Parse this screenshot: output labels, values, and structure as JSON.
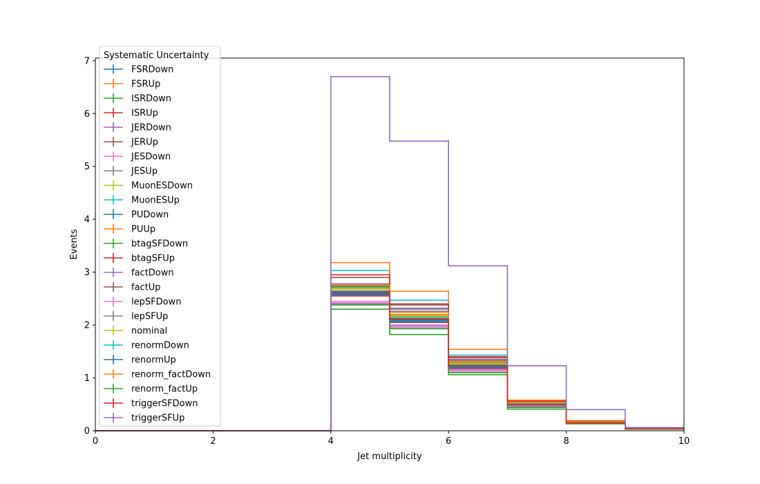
{
  "chart_data": {
    "type": "line",
    "step": "histogram",
    "xlabel": "Jet multiplicity",
    "ylabel": "Events",
    "xlim": [
      0,
      10
    ],
    "ylim": [
      0,
      7.05
    ],
    "xticks": [
      "0",
      "2",
      "4",
      "6",
      "8",
      "10"
    ],
    "yticks": [
      "0",
      "1",
      "2",
      "3",
      "4",
      "5",
      "6",
      "7"
    ],
    "grid": false,
    "bin_edges": [
      0,
      1,
      2,
      3,
      4,
      5,
      6,
      7,
      8,
      9,
      10
    ],
    "legend": {
      "title": "Systematic Uncertainty",
      "placement": "upper-left"
    },
    "series": [
      {
        "name": "FSRDown",
        "color": "#1f77b4",
        "values": [
          0,
          0,
          0,
          0,
          2.6,
          2.1,
          1.2,
          0.5,
          0.15,
          0.04
        ]
      },
      {
        "name": "FSRUp",
        "color": "#ff7f0e",
        "values": [
          0,
          0,
          0,
          0,
          2.7,
          2.2,
          1.3,
          0.55,
          0.18,
          0.05
        ]
      },
      {
        "name": "ISRDown",
        "color": "#2ca02c",
        "values": [
          0,
          0,
          0,
          0,
          2.72,
          2.15,
          1.25,
          0.52,
          0.16,
          0.04
        ]
      },
      {
        "name": "ISRUp",
        "color": "#d62728",
        "values": [
          0,
          0,
          0,
          0,
          2.55,
          2.05,
          1.18,
          0.48,
          0.15,
          0.04
        ]
      },
      {
        "name": "JERDown",
        "color": "#9467bd",
        "values": [
          0,
          0,
          0,
          0,
          2.78,
          2.3,
          1.35,
          0.55,
          0.17,
          0.05
        ]
      },
      {
        "name": "JERUp",
        "color": "#8c564b",
        "values": [
          0,
          0,
          0,
          0,
          2.9,
          2.38,
          1.38,
          0.56,
          0.18,
          0.05
        ]
      },
      {
        "name": "JESDown",
        "color": "#e377c2",
        "values": [
          0,
          0,
          0,
          0,
          2.42,
          1.95,
          1.12,
          0.45,
          0.14,
          0.04
        ]
      },
      {
        "name": "JESUp",
        "color": "#7f7f7f",
        "values": [
          0,
          0,
          0,
          0,
          2.75,
          2.32,
          1.33,
          0.55,
          0.17,
          0.05
        ]
      },
      {
        "name": "MuonESDown",
        "color": "#bcbd22",
        "values": [
          0,
          0,
          0,
          0,
          2.68,
          2.18,
          1.28,
          0.52,
          0.16,
          0.04
        ]
      },
      {
        "name": "MuonESUp",
        "color": "#17becf",
        "values": [
          0,
          0,
          0,
          0,
          3.03,
          2.47,
          1.43,
          0.55,
          0.18,
          0.05
        ]
      },
      {
        "name": "PUDown",
        "color": "#1f77b4",
        "values": [
          0,
          0,
          0,
          0,
          2.58,
          2.08,
          1.2,
          0.49,
          0.15,
          0.04
        ]
      },
      {
        "name": "PUUp",
        "color": "#ff7f0e",
        "values": [
          0,
          0,
          0,
          0,
          3.18,
          2.64,
          1.54,
          0.58,
          0.19,
          0.06
        ]
      },
      {
        "name": "btagSFDown",
        "color": "#2ca02c",
        "values": [
          0,
          0,
          0,
          0,
          2.3,
          1.82,
          1.06,
          0.41,
          0.13,
          0.03
        ]
      },
      {
        "name": "btagSFUp",
        "color": "#d62728",
        "values": [
          0,
          0,
          0,
          0,
          2.95,
          2.4,
          1.4,
          0.56,
          0.18,
          0.05
        ]
      },
      {
        "name": "factDown",
        "color": "#9467bd",
        "values": [
          0,
          0,
          0,
          0,
          2.4,
          1.98,
          1.15,
          0.46,
          0.14,
          0.04
        ]
      },
      {
        "name": "factUp",
        "color": "#8c564b",
        "values": [
          0,
          0,
          0,
          0,
          2.62,
          2.12,
          1.22,
          0.5,
          0.15,
          0.04
        ]
      },
      {
        "name": "lepSFDown",
        "color": "#e377c2",
        "values": [
          0,
          0,
          0,
          0,
          2.45,
          2.0,
          1.16,
          0.47,
          0.14,
          0.04
        ]
      },
      {
        "name": "lepSFUp",
        "color": "#7f7f7f",
        "values": [
          0,
          0,
          0,
          0,
          2.74,
          2.26,
          1.3,
          0.53,
          0.17,
          0.05
        ]
      },
      {
        "name": "nominal",
        "color": "#bcbd22",
        "values": [
          0,
          0,
          0,
          0,
          2.7,
          2.16,
          1.27,
          0.52,
          0.16,
          0.04
        ]
      },
      {
        "name": "renormDown",
        "color": "#17becf",
        "values": [
          0,
          0,
          0,
          0,
          2.65,
          2.14,
          1.24,
          0.51,
          0.16,
          0.04
        ]
      },
      {
        "name": "renormUp",
        "color": "#1f77b4",
        "values": [
          0,
          0,
          0,
          0,
          2.57,
          2.06,
          1.19,
          0.49,
          0.15,
          0.04
        ]
      },
      {
        "name": "renorm_factDown",
        "color": "#ff7f0e",
        "values": [
          0,
          0,
          0,
          0,
          2.76,
          2.24,
          1.31,
          0.54,
          0.17,
          0.05
        ]
      },
      {
        "name": "renorm_factUp",
        "color": "#2ca02c",
        "values": [
          0,
          0,
          0,
          0,
          2.38,
          1.93,
          1.1,
          0.44,
          0.14,
          0.03
        ]
      },
      {
        "name": "triggerSFDown",
        "color": "#d62728",
        "values": [
          0,
          0,
          0,
          0,
          2.63,
          2.11,
          1.23,
          0.5,
          0.15,
          0.04
        ]
      },
      {
        "name": "triggerSFUp",
        "color": "#9467bd",
        "values": [
          0,
          0,
          0,
          0,
          6.7,
          5.48,
          3.12,
          1.23,
          0.4,
          0.06
        ]
      }
    ]
  }
}
